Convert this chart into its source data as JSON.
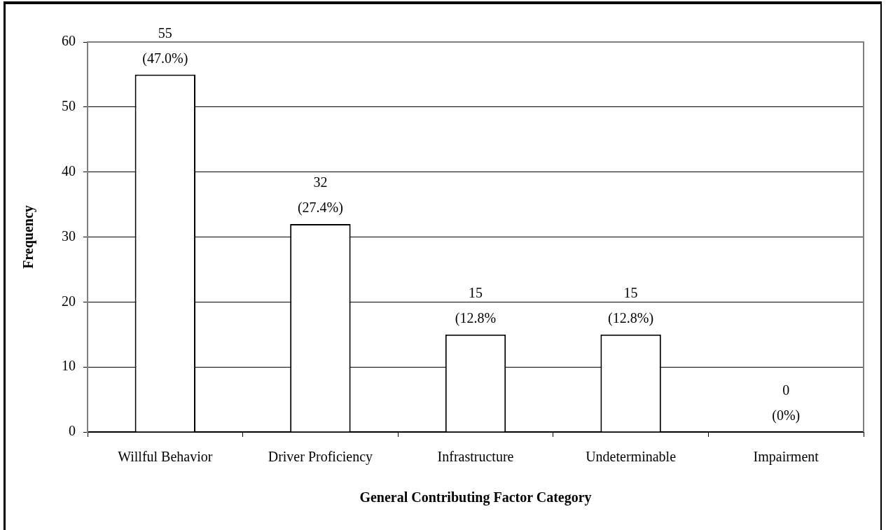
{
  "chart_data": {
    "type": "bar",
    "xlabel": "General Contributing Factor Category",
    "ylabel": "Frequency",
    "categories": [
      "Willful Behavior",
      "Driver Proficiency",
      "Infrastructure",
      "Undeterminable",
      "Impairment"
    ],
    "values": [
      55,
      32,
      15,
      15,
      0
    ],
    "color": "#ffffff",
    "value_labels": [
      "55\n(47.0%)",
      "32\n(27.4%)",
      "15\n(12.8%",
      "15\n(12.8%)",
      "0\n(0%)"
    ],
    "ylim": [
      0,
      60
    ],
    "yticks": [
      0,
      10,
      20,
      30,
      40,
      50,
      60
    ],
    "grid": "y"
  }
}
